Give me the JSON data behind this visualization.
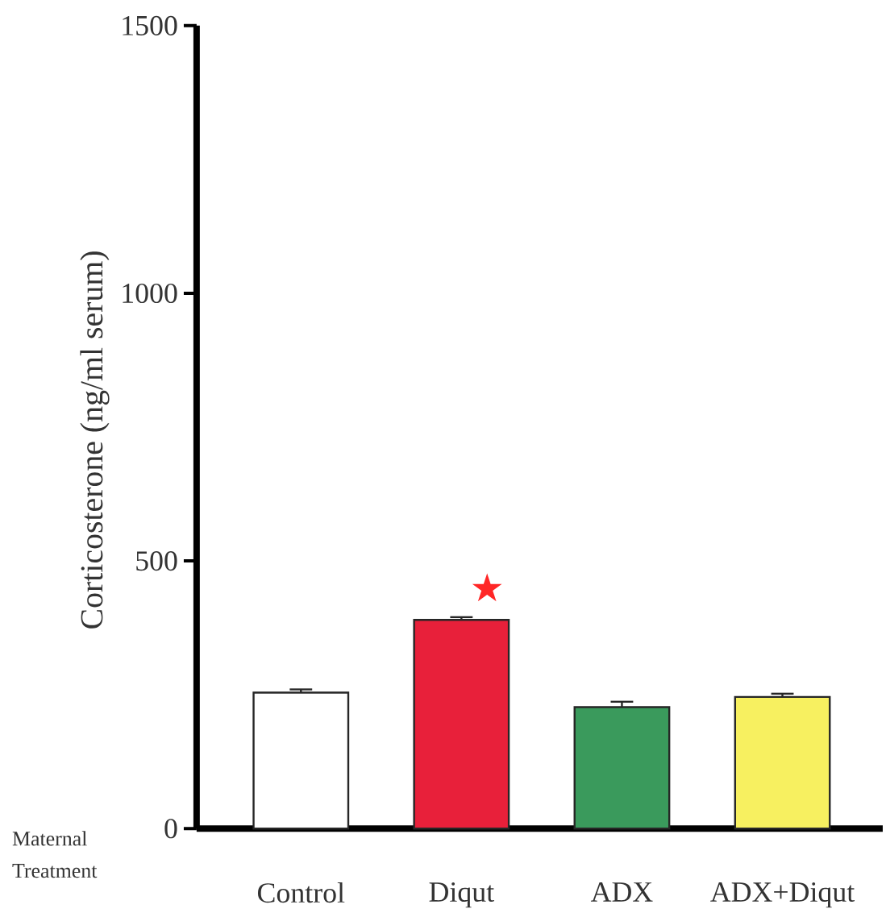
{
  "chart_data": {
    "type": "bar",
    "ylabel": "Corticosterone (ng/ml serum)",
    "xlabel": "Maternal Treatment",
    "categories": [
      "Control",
      "Diqut",
      "ADX",
      "ADX+Diqut"
    ],
    "values": [
      254,
      390,
      227,
      246
    ],
    "errors": [
      6,
      5,
      10,
      6
    ],
    "colors": [
      "#ffffff",
      "#e8203a",
      "#3a9a5c",
      "#f7f060"
    ],
    "ylim": [
      0,
      1500
    ],
    "yticks": [
      0,
      500,
      1000,
      1500
    ],
    "annotations": [
      "★"
    ]
  }
}
